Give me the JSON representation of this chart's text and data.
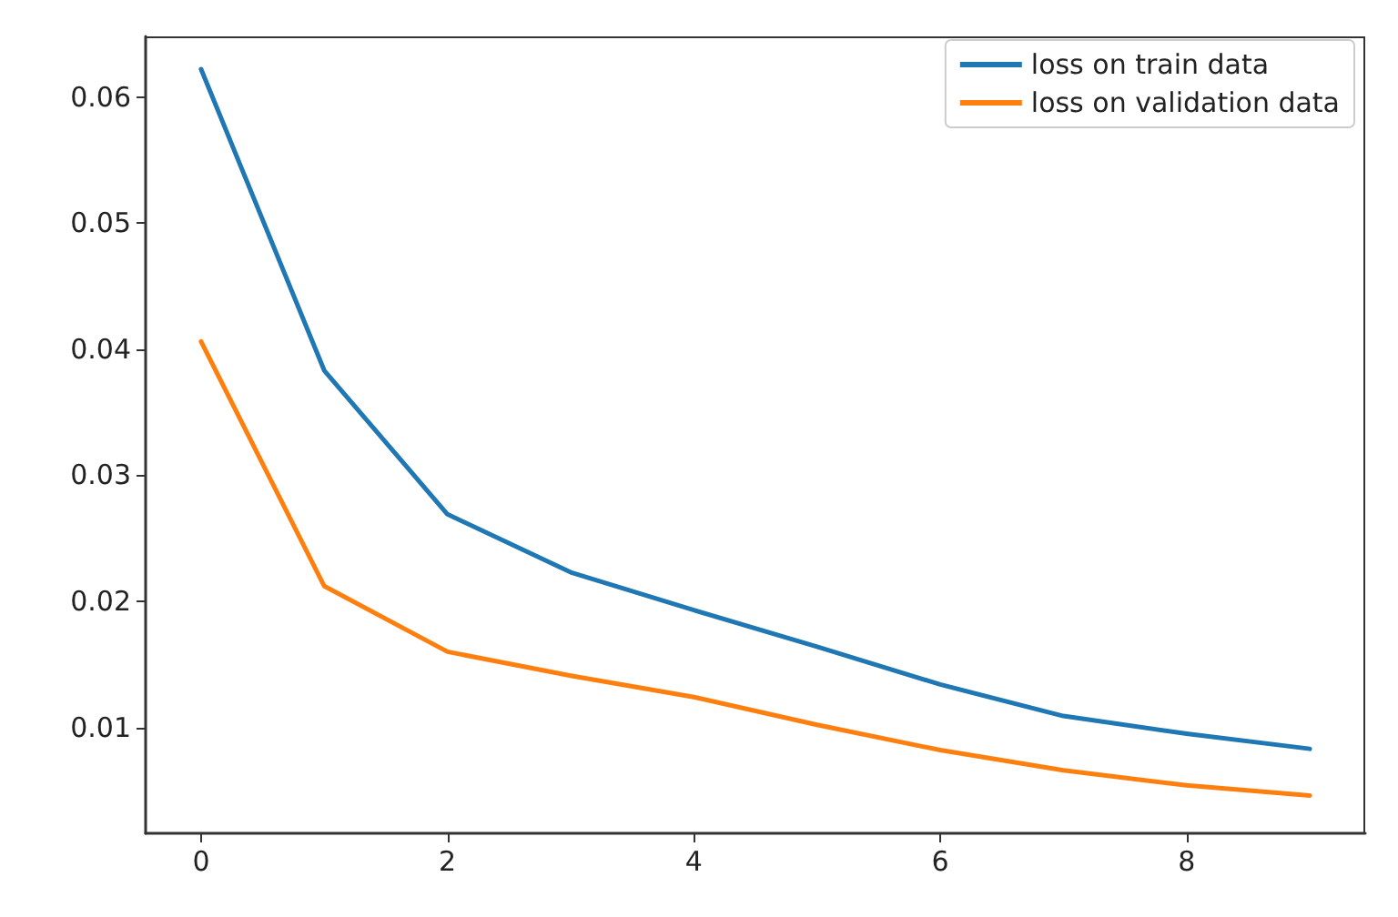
{
  "chart_data": {
    "type": "line",
    "x": [
      0,
      1,
      2,
      3,
      4,
      5,
      6,
      7,
      8,
      9
    ],
    "series": [
      {
        "name": "loss on train data",
        "color": "#1f77b4",
        "values": [
          0.0622,
          0.0383,
          0.0269,
          0.0223,
          0.0193,
          0.0164,
          0.0134,
          0.0109,
          0.0095,
          0.0083
        ]
      },
      {
        "name": "loss on validation data",
        "color": "#ff7f0e",
        "values": [
          0.0406,
          0.0212,
          0.016,
          0.0141,
          0.0124,
          0.0102,
          0.0082,
          0.0066,
          0.0054,
          0.0046
        ]
      }
    ],
    "xlim": [
      -0.45,
      9.45
    ],
    "xticks": [
      0,
      2,
      4,
      6,
      8
    ],
    "ylim": [
      0.0016,
      0.0648
    ],
    "yticks": [
      0.01,
      0.02,
      0.03,
      0.04,
      0.05,
      0.06
    ],
    "grid": false,
    "legend": "top right",
    "marker": "none",
    "line_style": "solid"
  }
}
